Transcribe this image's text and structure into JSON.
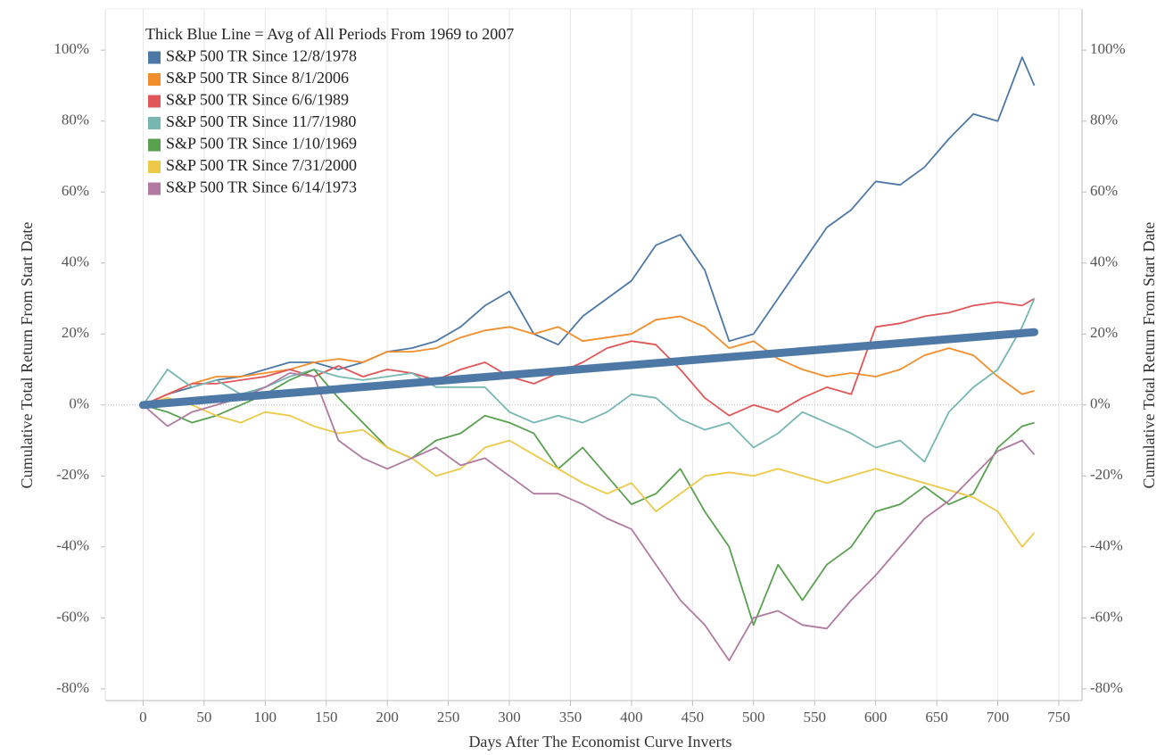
{
  "chart_data": {
    "type": "line",
    "legend_title": "Thick Blue Line = Avg of All Periods From 1969 to 2007",
    "x_label": "Days After The Economist Curve Inverts",
    "y_label": "Cumulative Total Return From Start Date",
    "y2_label": "Cumulative Total Return From Start Date",
    "xlim": [
      -31,
      769
    ],
    "xticks": [
      0,
      50,
      100,
      150,
      200,
      250,
      300,
      350,
      400,
      450,
      500,
      550,
      600,
      650,
      700,
      750
    ],
    "ylim": [
      -83.3,
      111.6
    ],
    "yticks": [
      {
        "value": -80,
        "label": "-80%"
      },
      {
        "value": -60,
        "label": "-60%"
      },
      {
        "value": -40,
        "label": "-40%"
      },
      {
        "value": -20,
        "label": "-20%"
      },
      {
        "value": 0,
        "label": "0%"
      },
      {
        "value": 20,
        "label": "20%"
      },
      {
        "value": 40,
        "label": "40%"
      },
      {
        "value": 60,
        "label": "60%"
      },
      {
        "value": 80,
        "label": "80%"
      },
      {
        "value": 100,
        "label": "100%"
      }
    ],
    "y2lim": [
      -83.3,
      111.6
    ],
    "y2ticks": [
      {
        "value": -80,
        "label": "-80%"
      },
      {
        "value": -60,
        "label": "-60%"
      },
      {
        "value": -40,
        "label": "-40%"
      },
      {
        "value": -20,
        "label": "-20%"
      },
      {
        "value": 0,
        "label": "0%"
      },
      {
        "value": 20,
        "label": "20%"
      },
      {
        "value": 40,
        "label": "40%"
      },
      {
        "value": 60,
        "label": "60%"
      },
      {
        "value": 80,
        "label": "80%"
      },
      {
        "value": 100,
        "label": "100%"
      }
    ],
    "grid": true,
    "legend": "top-left",
    "x": [
      0,
      20,
      40,
      60,
      80,
      100,
      120,
      140,
      160,
      180,
      200,
      220,
      240,
      260,
      280,
      300,
      320,
      340,
      360,
      380,
      400,
      420,
      440,
      460,
      480,
      500,
      520,
      540,
      560,
      580,
      600,
      620,
      640,
      660,
      680,
      700,
      720,
      730
    ],
    "series": [
      {
        "name": "S&P 500 TR Since 12/8/1978",
        "color": "#4e79a7",
        "values": [
          0,
          3,
          5,
          7,
          8,
          10,
          12,
          12,
          10,
          12,
          15,
          16,
          18,
          22,
          28,
          32,
          20,
          17,
          25,
          30,
          35,
          45,
          48,
          38,
          18,
          20,
          30,
          40,
          50,
          55,
          63,
          62,
          67,
          75,
          82,
          80,
          98,
          90
        ]
      },
      {
        "name": "S&P 500 TR Since 8/1/2006",
        "color": "#f28e2b",
        "values": [
          0,
          3,
          6,
          8,
          8,
          9,
          10,
          12,
          13,
          12,
          15,
          15,
          16,
          19,
          21,
          22,
          20,
          22,
          18,
          19,
          20,
          24,
          25,
          22,
          16,
          18,
          13,
          10,
          8,
          9,
          8,
          10,
          14,
          16,
          14,
          8,
          3,
          4
        ]
      },
      {
        "name": "S&P 500 TR Since 6/6/1989",
        "color": "#e15759",
        "values": [
          0,
          3,
          6,
          6,
          7,
          8,
          10,
          8,
          11,
          8,
          10,
          9,
          7,
          10,
          12,
          8,
          6,
          9,
          12,
          16,
          18,
          17,
          10,
          2,
          -3,
          0,
          -2,
          2,
          5,
          3,
          22,
          23,
          25,
          26,
          28,
          29,
          28,
          30
        ]
      },
      {
        "name": "S&P 500 TR Since 11/7/1980",
        "color": "#76b7b2",
        "values": [
          0,
          10,
          5,
          7,
          3,
          5,
          8,
          10,
          8,
          7,
          8,
          9,
          5,
          5,
          5,
          -2,
          -5,
          -3,
          -5,
          -2,
          3,
          2,
          -4,
          -7,
          -5,
          -12,
          -8,
          -2,
          -5,
          -8,
          -12,
          -10,
          -16,
          -2,
          5,
          10,
          22,
          30
        ]
      },
      {
        "name": "S&P 500 TR Since 1/10/1969",
        "color": "#59a14f",
        "values": [
          0,
          -2,
          -5,
          -3,
          0,
          3,
          7,
          10,
          2,
          -5,
          -12,
          -15,
          -10,
          -8,
          -3,
          -5,
          -8,
          -18,
          -12,
          -20,
          -28,
          -25,
          -18,
          -30,
          -40,
          -62,
          -45,
          -55,
          -45,
          -40,
          -30,
          -28,
          -23,
          -28,
          -25,
          -12,
          -6,
          -5
        ]
      },
      {
        "name": "S&P 500 TR Since 7/31/2000",
        "color": "#edc948",
        "values": [
          0,
          2,
          0,
          -3,
          -5,
          -2,
          -3,
          -6,
          -8,
          -7,
          -12,
          -15,
          -20,
          -18,
          -12,
          -10,
          -14,
          -18,
          -22,
          -25,
          -22,
          -30,
          -25,
          -20,
          -19,
          -20,
          -18,
          -20,
          -22,
          -20,
          -18,
          -20,
          -22,
          -24,
          -26,
          -30,
          -40,
          -36
        ]
      },
      {
        "name": "S&P 500 TR Since 6/14/1973",
        "color": "#b07aa1",
        "values": [
          0,
          -6,
          -2,
          0,
          2,
          5,
          9,
          8,
          -10,
          -15,
          -18,
          -15,
          -12,
          -17,
          -15,
          -20,
          -25,
          -25,
          -28,
          -32,
          -35,
          -45,
          -55,
          -62,
          -72,
          -60,
          -58,
          -62,
          -63,
          -55,
          -48,
          -40,
          -32,
          -27,
          -20,
          -13,
          -10,
          -14
        ]
      }
    ],
    "average": {
      "color": "#4e79a7",
      "x": [
        0,
        730
      ],
      "values": [
        0,
        20.5
      ]
    }
  }
}
